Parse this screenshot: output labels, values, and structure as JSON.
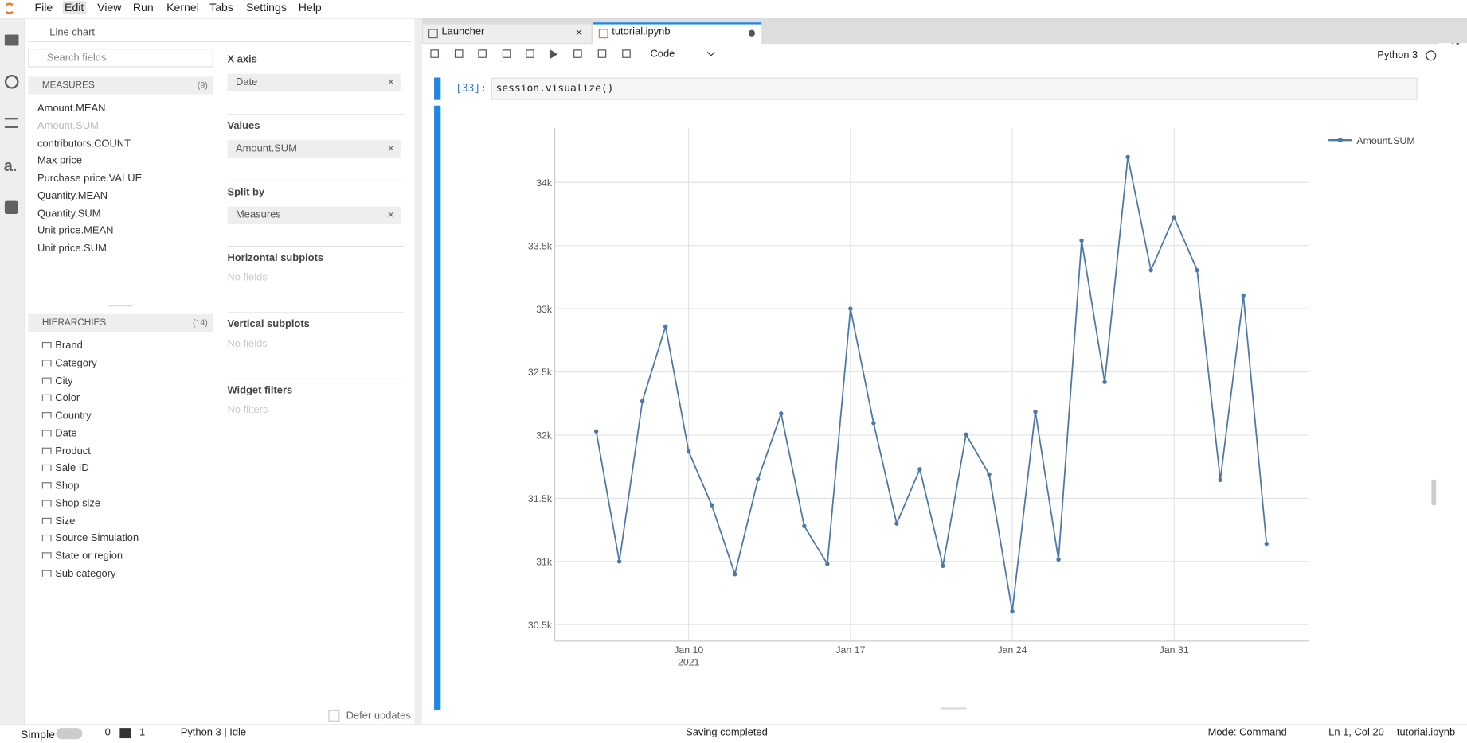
{
  "menu": [
    "File",
    "Edit",
    "View",
    "Run",
    "Kernel",
    "Tabs",
    "Settings",
    "Help"
  ],
  "widget": {
    "chart_type": "Line chart",
    "search_placeholder": "Search fields",
    "measures": {
      "title": "MEASURES",
      "count": "(9)",
      "items": [
        "Amount.MEAN",
        "Amount.SUM",
        "contributors.COUNT",
        "Max price",
        "Purchase price.VALUE",
        "Quantity.MEAN",
        "Quantity.SUM",
        "Unit price.MEAN",
        "Unit price.SUM"
      ]
    },
    "hierarchies": {
      "title": "HIERARCHIES",
      "count": "(14)",
      "items": [
        "Brand",
        "Category",
        "City",
        "Color",
        "Country",
        "Date",
        "Product",
        "Sale ID",
        "Shop",
        "Shop size",
        "Size",
        "Source Simulation",
        "State or region",
        "Sub category"
      ]
    },
    "sections": [
      {
        "title": "X axis",
        "value": "Date"
      },
      {
        "title": "Values",
        "value": "Amount.SUM"
      },
      {
        "title": "Split by",
        "value": "Measures"
      },
      {
        "title": "Horizontal subplots",
        "empty": "No fields"
      },
      {
        "title": "Vertical subplots",
        "empty": "No fields"
      },
      {
        "title": "Widget filters",
        "empty": "No filters"
      }
    ],
    "defer": "Defer updates"
  },
  "tabs": [
    "Launcher",
    "tutorial.ipynb"
  ],
  "toolbar": {
    "cell_type": "Code",
    "kernel": "Python 3"
  },
  "cell": {
    "prompt": "[33]:",
    "code": "session.visualize()"
  },
  "status": {
    "mode": "Simple",
    "terminals": "0",
    "kernels": "1",
    "kernel_status": "Python 3 | Idle",
    "message": "Saving completed",
    "command_mode": "Mode: Command",
    "position": "Ln 1, Col 20",
    "file": "tutorial.ipynb"
  },
  "chart_data": {
    "type": "line",
    "grid": true,
    "legend": "top-right",
    "x": [
      "2021-01-06",
      "2021-01-07",
      "2021-01-08",
      "2021-01-09",
      "2021-01-10",
      "2021-01-11",
      "2021-01-12",
      "2021-01-13",
      "2021-01-14",
      "2021-01-15",
      "2021-01-16",
      "2021-01-17",
      "2021-01-18",
      "2021-01-19",
      "2021-01-20",
      "2021-01-21",
      "2021-01-22",
      "2021-01-23",
      "2021-01-24",
      "2021-01-25",
      "2021-01-26",
      "2021-01-27",
      "2021-01-28",
      "2021-01-29",
      "2021-01-30",
      "2021-01-31",
      "2021-02-01",
      "2021-02-02",
      "2021-02-03",
      "2021-02-04"
    ],
    "series": [
      {
        "name": "Amount.SUM",
        "color": "#4c78a8",
        "values": [
          32030,
          31000,
          32270,
          32860,
          31870,
          31445,
          30900,
          31650,
          32170,
          31280,
          30980,
          33000,
          32095,
          31300,
          31730,
          30965,
          32005,
          31690,
          30605,
          32185,
          31015,
          33540,
          32420,
          34200,
          33305,
          33725,
          33305,
          31645,
          33105,
          31140
        ]
      }
    ],
    "xlim": [
      "2021-01-04T05:00:00Z",
      "2021-02-05T20:00:00Z"
    ],
    "xticks": [
      {
        "value": "2021-01-10",
        "label": "Jan 10\n2021"
      },
      {
        "value": "2021-01-17",
        "label": "Jan 17"
      },
      {
        "value": "2021-01-24",
        "label": "Jan 24"
      },
      {
        "value": "2021-01-31",
        "label": "Jan 31"
      }
    ],
    "ylim": [
      30370,
      34430
    ],
    "yticks": [
      {
        "value": 30500,
        "label": "30.5k"
      },
      {
        "value": 31000,
        "label": "31k"
      },
      {
        "value": 31500,
        "label": "31.5k"
      },
      {
        "value": 32000,
        "label": "32k"
      },
      {
        "value": 32500,
        "label": "32.5k"
      },
      {
        "value": 33000,
        "label": "33k"
      },
      {
        "value": 33500,
        "label": "33.5k"
      },
      {
        "value": 34000,
        "label": "34k"
      }
    ]
  }
}
